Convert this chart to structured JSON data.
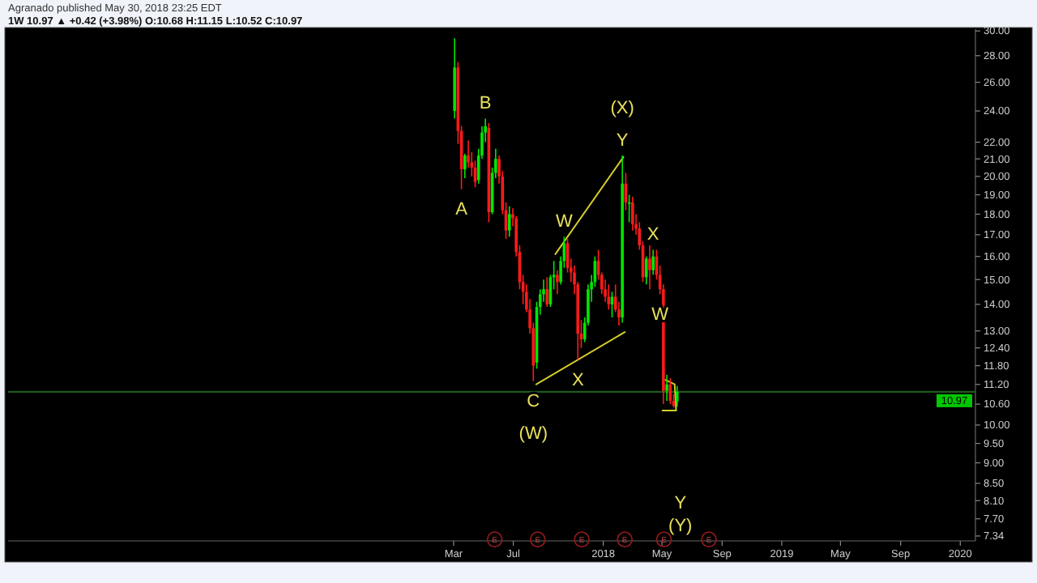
{
  "chart_data": {
    "type": "candlestick",
    "title": "Agranado published May 30, 2018 23:25 EDT",
    "subtitle": "1W 10.97 ▲ +0.42 (+3.98%) O:10.68 H:11.15 L:10.52 C:10.97",
    "log": true,
    "x": [
      "2017-03-03",
      "2017-03-10",
      "2017-03-17",
      "2017-03-24",
      "2017-03-31",
      "2017-04-07",
      "2017-04-14",
      "2017-04-21",
      "2017-04-28",
      "2017-05-05",
      "2017-05-12",
      "2017-05-19",
      "2017-05-26",
      "2017-06-02",
      "2017-06-09",
      "2017-06-16",
      "2017-06-23",
      "2017-06-30",
      "2017-07-07",
      "2017-07-14",
      "2017-07-21",
      "2017-07-28",
      "2017-08-04",
      "2017-08-11",
      "2017-08-18",
      "2017-08-25",
      "2017-09-01",
      "2017-09-08",
      "2017-09-15",
      "2017-09-22",
      "2017-09-29",
      "2017-10-06",
      "2017-10-13",
      "2017-10-20",
      "2017-10-27",
      "2017-11-03",
      "2017-11-10",
      "2017-11-17",
      "2017-11-24",
      "2017-12-01",
      "2017-12-08",
      "2017-12-15",
      "2017-12-22",
      "2017-12-29",
      "2018-01-05",
      "2018-01-12",
      "2018-01-19",
      "2018-01-26",
      "2018-02-02",
      "2018-02-09",
      "2018-02-16",
      "2018-02-23",
      "2018-03-02",
      "2018-03-09",
      "2018-03-16",
      "2018-03-23",
      "2018-03-30",
      "2018-04-06",
      "2018-04-13",
      "2018-04-20",
      "2018-04-27",
      "2018-05-04",
      "2018-05-11",
      "2018-05-18",
      "2018-05-25",
      "2018-06-01"
    ],
    "ohlc": [
      [
        24,
        29.4,
        23.5,
        27.1
      ],
      [
        27.1,
        27.5,
        21.9,
        22.7
      ],
      [
        22.7,
        23,
        19.3,
        20.4
      ],
      [
        20.4,
        21.3,
        19.9,
        21.2
      ],
      [
        21.2,
        22.1,
        20.5,
        20.8
      ],
      [
        20.8,
        21.4,
        20,
        20.5
      ],
      [
        20.5,
        20.9,
        19.4,
        19.7
      ],
      [
        19.8,
        21.6,
        19.6,
        21.2
      ],
      [
        21.2,
        23,
        21,
        22.6
      ],
      [
        22.6,
        23.5,
        22,
        23
      ],
      [
        22.9,
        23.2,
        17.6,
        18.1
      ],
      [
        18.1,
        20.5,
        18,
        20.2
      ],
      [
        20.2,
        21.6,
        19.9,
        21
      ],
      [
        21,
        21.2,
        19.6,
        20
      ],
      [
        20,
        20.3,
        18,
        18.2
      ],
      [
        18.2,
        18.6,
        16.8,
        17.2
      ],
      [
        17.2,
        18.4,
        16.9,
        18
      ],
      [
        18,
        18.3,
        17.4,
        17.8
      ],
      [
        17.8,
        17.9,
        16,
        16.2
      ],
      [
        16.2,
        16.5,
        14.6,
        14.9
      ],
      [
        14.9,
        15.2,
        14,
        14.5
      ],
      [
        14.5,
        14.8,
        13.7,
        13.8
      ],
      [
        13.8,
        14.2,
        12.9,
        13.1
      ],
      [
        13.1,
        13.3,
        11.3,
        11.8
      ],
      [
        11.9,
        14.1,
        11.7,
        13.9
      ],
      [
        13.9,
        14.6,
        13.6,
        14.4
      ],
      [
        14.4,
        15,
        14.1,
        14.6
      ],
      [
        14.6,
        15.1,
        13.9,
        14
      ],
      [
        14,
        15.2,
        13.9,
        15.1
      ],
      [
        15.1,
        15.8,
        14.6,
        15.2
      ],
      [
        15.2,
        15.4,
        14.4,
        14.9
      ],
      [
        14.9,
        16,
        14.8,
        15.8
      ],
      [
        15.8,
        16.9,
        15.5,
        16.6
      ],
      [
        16.6,
        16.8,
        15.3,
        15.5
      ],
      [
        15.5,
        15.9,
        14.9,
        15.3
      ],
      [
        15.3,
        15.6,
        14.4,
        14.8
      ],
      [
        14.8,
        14.9,
        12,
        12.9
      ],
      [
        12.9,
        13.4,
        12.4,
        12.7
      ],
      [
        12.7,
        13.5,
        12.6,
        13.3
      ],
      [
        13.3,
        14.8,
        13.2,
        14.6
      ],
      [
        14.6,
        15.2,
        14.1,
        14.9
      ],
      [
        14.9,
        16,
        14.7,
        15.8
      ],
      [
        15.8,
        16.3,
        15,
        15.2
      ],
      [
        15.2,
        15.3,
        14.4,
        14.6
      ],
      [
        14.6,
        15,
        14.1,
        14.3
      ],
      [
        14.3,
        14.8,
        13.8,
        14
      ],
      [
        14,
        14.5,
        13.5,
        14.3
      ],
      [
        14.3,
        14.8,
        13.7,
        13.8
      ],
      [
        13.8,
        14.1,
        13.2,
        13.5
      ],
      [
        13.5,
        21.2,
        13.3,
        19.6
      ],
      [
        19.6,
        20.2,
        18.2,
        18.6
      ],
      [
        18.6,
        19,
        17.6,
        18.6
      ],
      [
        18.6,
        18.9,
        17.2,
        17.5
      ],
      [
        17.5,
        18,
        17,
        17.3
      ],
      [
        17.3,
        17.6,
        16.3,
        16.5
      ],
      [
        16.5,
        16.7,
        14.9,
        15.1
      ],
      [
        15.1,
        16,
        14.8,
        15.9
      ],
      [
        15.9,
        16.5,
        14.6,
        15.4
      ],
      [
        15.4,
        16.3,
        15.2,
        16
      ],
      [
        16,
        16.3,
        15,
        15.2
      ],
      [
        15.2,
        15.6,
        14.4,
        14.6
      ],
      [
        14.6,
        14.8,
        10.6,
        11
      ],
      [
        11,
        11.5,
        10.7,
        11.2
      ],
      [
        11.2,
        11.4,
        10.6,
        10.7
      ],
      [
        10.7,
        10.9,
        10.5,
        10.55
      ],
      [
        10.68,
        11.15,
        10.52,
        10.97
      ]
    ],
    "series": [
      {
        "type": "line",
        "color": "#d4cc2a",
        "x": [
          "2017-09-25",
          "2018-02-11"
        ],
        "values": [
          16.1,
          21.1
        ]
      },
      {
        "type": "line",
        "color": "#d4cc2a",
        "x": [
          "2017-08-17",
          "2018-02-14"
        ],
        "values": [
          11.2,
          12.96
        ]
      },
      {
        "type": "line",
        "color": "#d4cc2a",
        "x": [
          "2018-05-08",
          "2018-05-27",
          "2018-05-30",
          "2018-05-02"
        ],
        "values": [
          11.34,
          11.2,
          10.41,
          10.41
        ]
      }
    ],
    "xlim": [
      "2014-09-02",
      "2020-02-01"
    ],
    "xticks": [
      {
        "value": "2017-03-01",
        "label": "Mar"
      },
      {
        "value": "2017-07-01",
        "label": "Jul"
      },
      {
        "value": "2018-01-01",
        "label": "2018"
      },
      {
        "value": "2018-05-01",
        "label": "May"
      },
      {
        "value": "2018-09-01",
        "label": "Sep"
      },
      {
        "value": "2019-01-01",
        "label": "2019"
      },
      {
        "value": "2019-05-01",
        "label": "May"
      },
      {
        "value": "2019-09-01",
        "label": "Sep"
      },
      {
        "value": "2020-01-01",
        "label": "2020"
      }
    ],
    "ylim": [
      7.24,
      30.15
    ],
    "yticks": [
      {
        "value": 30,
        "label": "30.00"
      },
      {
        "value": 28,
        "label": "28.00"
      },
      {
        "value": 26,
        "label": "26.00"
      },
      {
        "value": 24,
        "label": "24.00"
      },
      {
        "value": 22,
        "label": "22.00"
      },
      {
        "value": 21,
        "label": "21.00"
      },
      {
        "value": 20,
        "label": "20.00"
      },
      {
        "value": 19,
        "label": "19.00"
      },
      {
        "value": 18,
        "label": "18.00"
      },
      {
        "value": 17,
        "label": "17.00"
      },
      {
        "value": 16,
        "label": "16.00"
      },
      {
        "value": 15,
        "label": "15.00"
      },
      {
        "value": 14,
        "label": "14.00"
      },
      {
        "value": 13,
        "label": "13.00"
      },
      {
        "value": 12.4,
        "label": "12.40"
      },
      {
        "value": 11.8,
        "label": "11.80"
      },
      {
        "value": 11.2,
        "label": "11.20"
      },
      {
        "value": 10.6,
        "label": "10.60"
      },
      {
        "value": 10,
        "label": "10.00"
      },
      {
        "value": 9.5,
        "label": "9.50"
      },
      {
        "value": 9,
        "label": "9.00"
      },
      {
        "value": 8.5,
        "label": "8.50"
      },
      {
        "value": 8.1,
        "label": "8.10"
      },
      {
        "value": 7.7,
        "label": "7.70"
      },
      {
        "value": 7.34,
        "label": "7.34"
      }
    ],
    "ref_lines": [
      {
        "axis": "y",
        "value": 10.97,
        "label": "10.97",
        "color": "#1f5a1f"
      }
    ],
    "annotations": [
      {
        "text": "A",
        "x": "2017-03-17",
        "y": 19.3
      },
      {
        "text": "B",
        "x": "2017-05-05",
        "y": 23.5
      },
      {
        "text": "Y",
        "x": "2018-02-09",
        "y": 21.2
      },
      {
        "text": "(X)",
        "x": "2018-02-09",
        "y": 21.2
      },
      {
        "text": "W",
        "x": "2017-10-13",
        "y": 16.9
      },
      {
        "text": "X",
        "x": "2018-04-13",
        "y": 16.3
      },
      {
        "text": "X",
        "x": "2017-11-10",
        "y": 12
      },
      {
        "text": "W",
        "x": "2018-04-27",
        "y": 14.4
      },
      {
        "text": "C",
        "x": "2017-08-11",
        "y": 11.3
      },
      {
        "text": "(W)",
        "x": "2017-08-11",
        "y": 11.3
      },
      "Y",
      "(Y)",
      {
        "text": "E",
        "x": "2017-05-24",
        "y": 7.27
      },
      {
        "text": "E",
        "x": "2017-08-20",
        "y": 7.27
      },
      {
        "text": "E",
        "x": "2017-11-18",
        "y": 7.27
      },
      {
        "text": "E",
        "x": "2018-02-14",
        "y": 7.27
      },
      {
        "text": "E",
        "x": "2018-05-05",
        "y": 7.27
      },
      {
        "text": "E",
        "x": "2018-08-05",
        "y": 7.27
      }
    ]
  }
}
